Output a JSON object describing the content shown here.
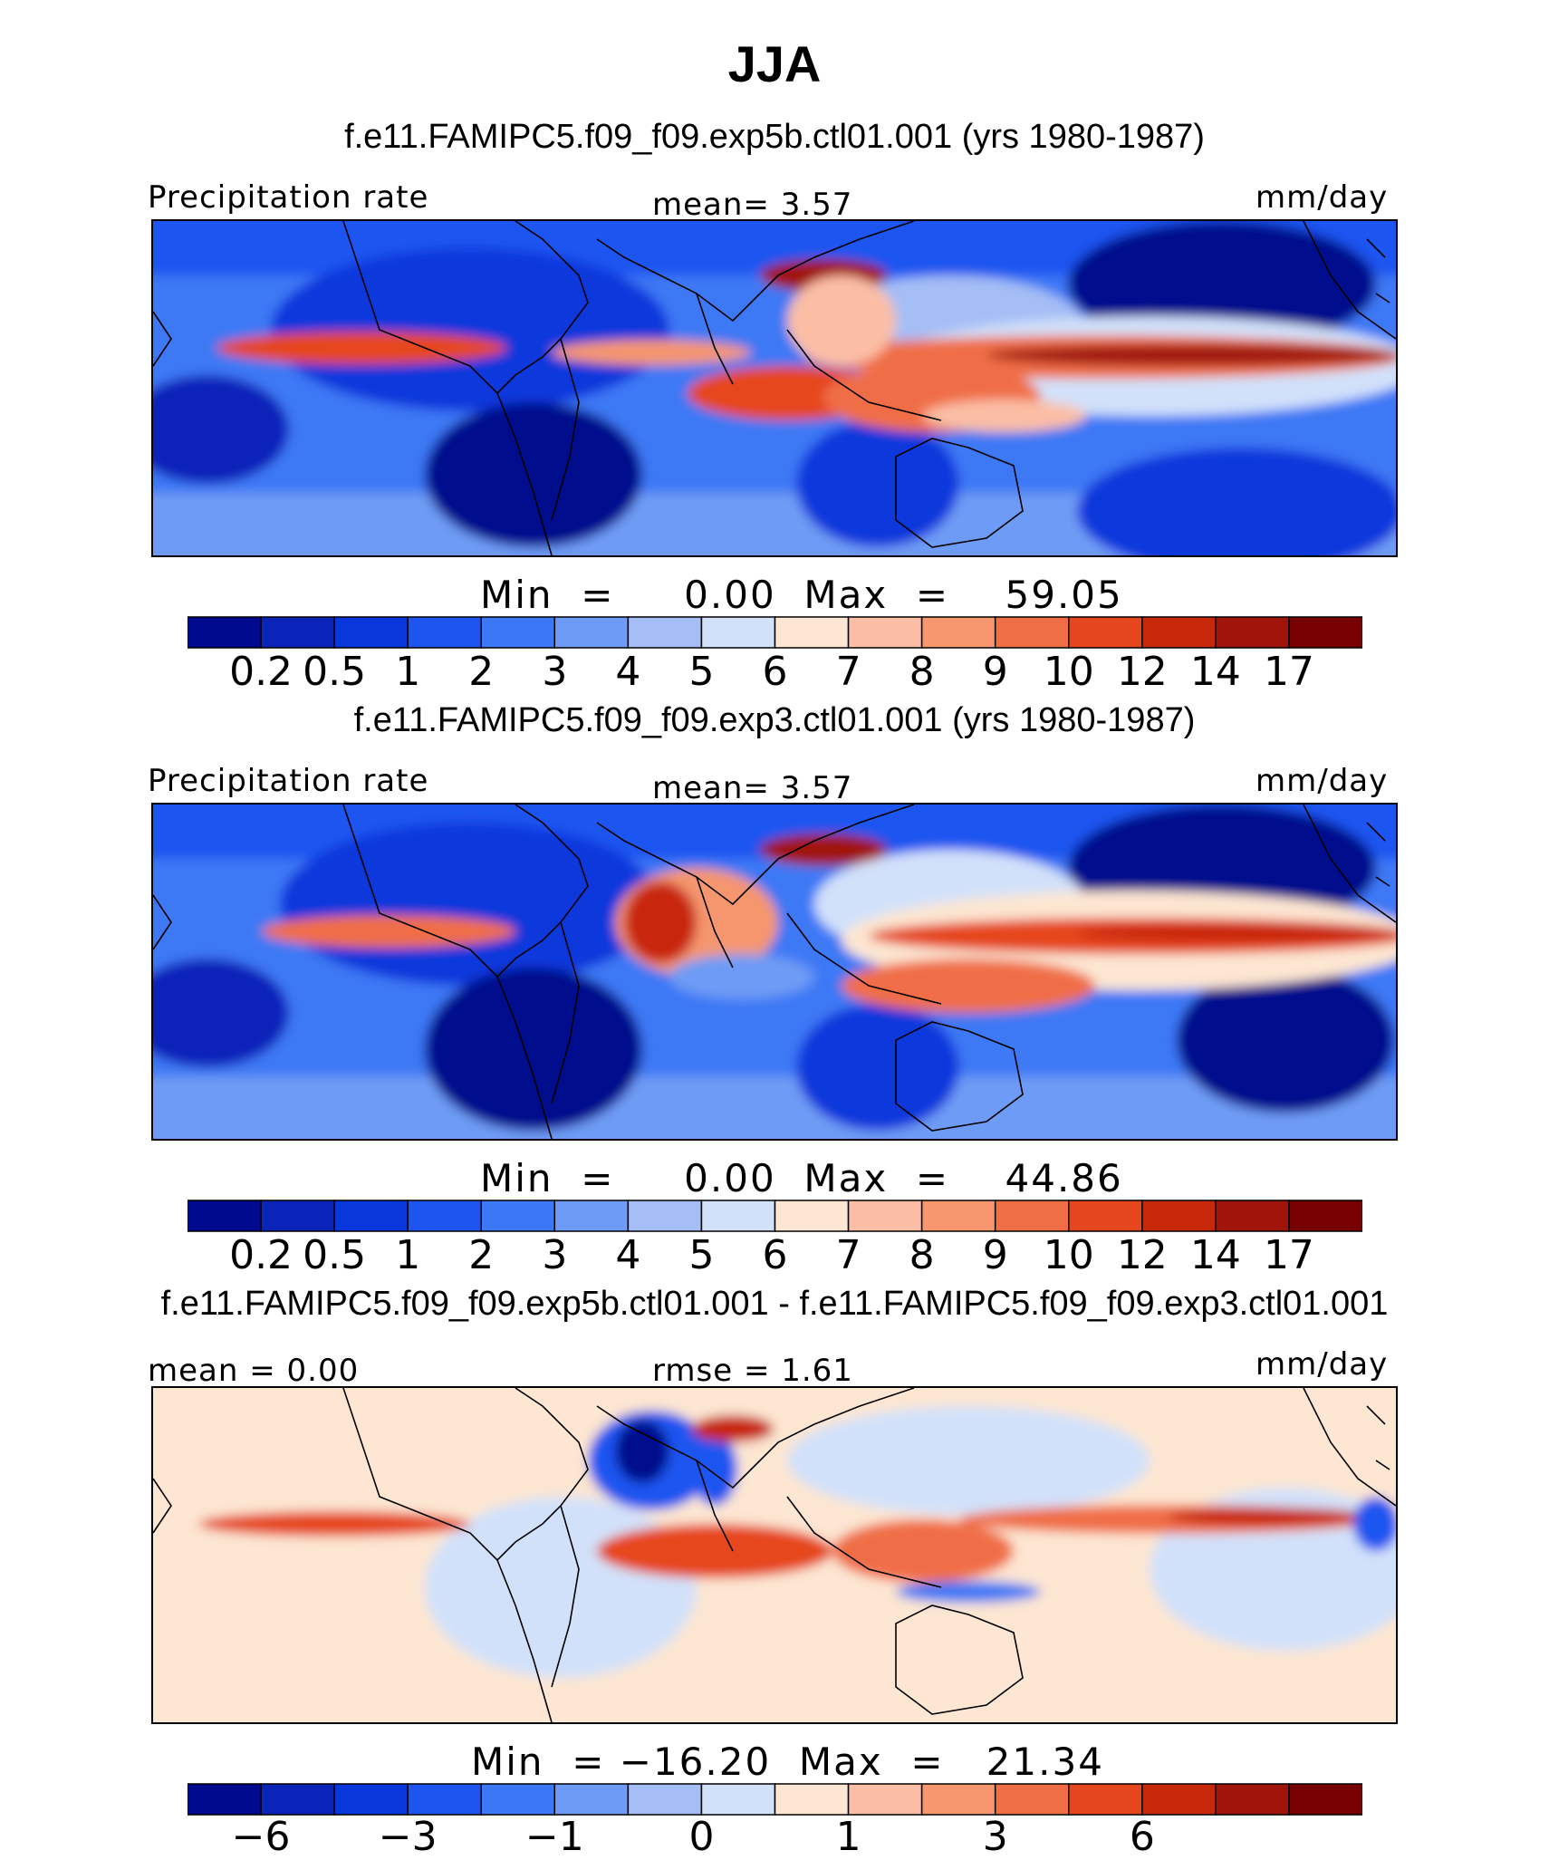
{
  "title": "JJA",
  "panels": [
    {
      "name": "exp5b",
      "case_title": "f.e11.FAMIPC5.f09_f09.exp5b.ctl01.001 (yrs 1980-1987)",
      "left_label": "Precipitation rate",
      "center_label": "mean=    3.57",
      "units": "mm/day",
      "minmax": "Min  =     0.00  Max  =    59.05",
      "min": 0.0,
      "max": 59.05,
      "mean": 3.57,
      "colorbar_ticks": [
        "0.2",
        "0.5",
        "1",
        "2",
        "3",
        "4",
        "5",
        "6",
        "7",
        "8",
        "9",
        "10",
        "12",
        "14",
        "17"
      ]
    },
    {
      "name": "exp3",
      "case_title": "f.e11.FAMIPC5.f09_f09.exp3.ctl01.001 (yrs 1980-1987)",
      "left_label": "Precipitation rate",
      "center_label": "mean=    3.57",
      "units": "mm/day",
      "minmax": "Min  =     0.00  Max  =    44.86",
      "min": 0.0,
      "max": 44.86,
      "mean": 3.57,
      "colorbar_ticks": [
        "0.2",
        "0.5",
        "1",
        "2",
        "3",
        "4",
        "5",
        "6",
        "7",
        "8",
        "9",
        "10",
        "12",
        "14",
        "17"
      ]
    },
    {
      "name": "difference",
      "case_title": "f.e11.FAMIPC5.f09_f09.exp5b.ctl01.001 - f.e11.FAMIPC5.f09_f09.exp3.ctl01.001",
      "left_label": "mean =    0.00",
      "center_label": "rmse =    1.61",
      "units": "mm/day",
      "minmax": "Min  = −16.20  Max  =   21.34",
      "min": -16.2,
      "max": 21.34,
      "mean": 0.0,
      "rmse": 1.61,
      "colorbar_ticks": [
        "−6",
        "",
        "−3",
        "",
        "−1",
        "",
        "0",
        "",
        "1",
        "",
        "3",
        "",
        "6",
        "",
        ""
      ]
    }
  ],
  "colors": {
    "palette": [
      "#000a8c",
      "#0a23b9",
      "#0a37dc",
      "#1e55f0",
      "#3c78f5",
      "#6e9bf5",
      "#a5bef5",
      "#d2e1fa",
      "#fde6d2",
      "#fbbea5",
      "#f5966e",
      "#f06e46",
      "#e6461e",
      "#c8280a",
      "#a0140a",
      "#780000"
    ],
    "background": "#ffffff",
    "coast": "#000000"
  }
}
